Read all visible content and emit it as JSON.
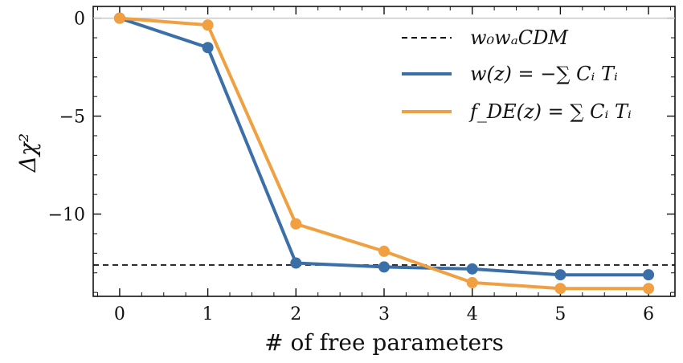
{
  "chart_data": {
    "type": "line",
    "xlabel": "# of free parameters",
    "ylabel": "Δχ²",
    "xlim": [
      -0.3,
      6.3
    ],
    "ylim": [
      -14.2,
      0.6
    ],
    "x_ticks": [
      0,
      1,
      2,
      3,
      4,
      5,
      6
    ],
    "y_ticks": [
      0,
      -5,
      -10
    ],
    "y_tick_labels": [
      "0",
      "−5",
      "−10"
    ],
    "grid": false,
    "legend_position": "top-right",
    "reference_lines": [
      {
        "name": "w₀wₐCDM",
        "y": -12.6,
        "style": "dashed",
        "color": "#111111"
      },
      {
        "name": "",
        "y": 0,
        "style": "solid",
        "color": "#c8c8c8"
      }
    ],
    "series": [
      {
        "name": "w(z) = −∑ Cᵢ Tᵢ",
        "color": "#3a6fa8",
        "x": [
          0,
          1,
          2,
          3,
          4,
          5,
          6
        ],
        "values": [
          0,
          -1.5,
          -12.5,
          -12.7,
          -12.8,
          -13.1,
          -13.1
        ]
      },
      {
        "name": "f_DE(z) = ∑ Cᵢ Tᵢ",
        "color": "#f0a040",
        "x": [
          0,
          1,
          2,
          3,
          4,
          5,
          6
        ],
        "values": [
          0,
          -0.35,
          -10.5,
          -11.9,
          -13.5,
          -13.8,
          -13.8
        ]
      }
    ]
  }
}
